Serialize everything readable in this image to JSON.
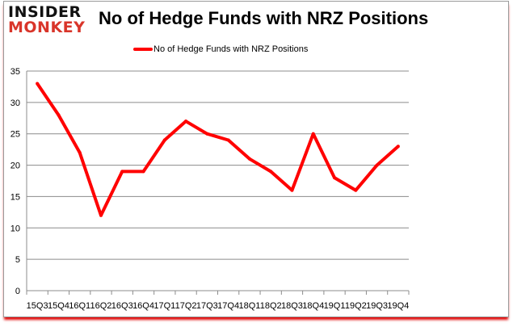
{
  "logo": {
    "line1": "INSIDER",
    "line2": "MONKEY"
  },
  "chart_data": {
    "type": "line",
    "title": "No of Hedge Funds with NRZ Positions",
    "xlabel": "",
    "ylabel": "",
    "categories": [
      "15Q3",
      "15Q4",
      "16Q1",
      "16Q2",
      "16Q3",
      "16Q4",
      "17Q1",
      "17Q2",
      "17Q3",
      "17Q4",
      "18Q1",
      "18Q2",
      "18Q3",
      "18Q4",
      "19Q1",
      "19Q2",
      "19Q3",
      "19Q4"
    ],
    "series": [
      {
        "name": "No of Hedge Funds with NRZ Positions",
        "color": "#ff0000",
        "values": [
          33,
          28,
          22,
          12,
          19,
          19,
          24,
          27,
          25,
          24,
          21,
          19,
          16,
          25,
          18,
          16,
          20,
          23
        ]
      }
    ],
    "ylim": [
      0,
      35
    ],
    "yticks": [
      0,
      5,
      10,
      15,
      20,
      25,
      30,
      35
    ],
    "grid": true,
    "legend_position": "top"
  }
}
